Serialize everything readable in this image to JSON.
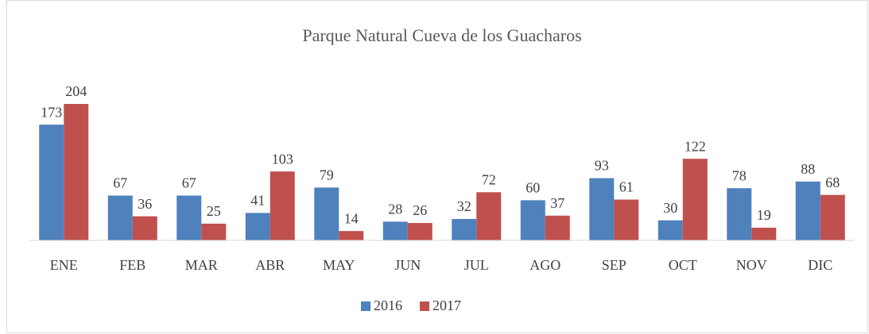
{
  "chart_data": {
    "type": "bar",
    "title": "Parque Natural Cueva de los Guacharos",
    "categories": [
      "ENE",
      "FEB",
      "MAR",
      "ABR",
      "MAY",
      "JUN",
      "JUL",
      "AGO",
      "SEP",
      "OCT",
      "NOV",
      "DIC"
    ],
    "series": [
      {
        "name": "2016",
        "color": "#4f81bd",
        "values": [
          173,
          67,
          67,
          41,
          79,
          28,
          32,
          60,
          93,
          30,
          78,
          88
        ]
      },
      {
        "name": "2017",
        "color": "#c0504d",
        "values": [
          204,
          36,
          25,
          103,
          14,
          26,
          72,
          37,
          61,
          122,
          19,
          68
        ]
      }
    ],
    "legend": "bottom"
  }
}
